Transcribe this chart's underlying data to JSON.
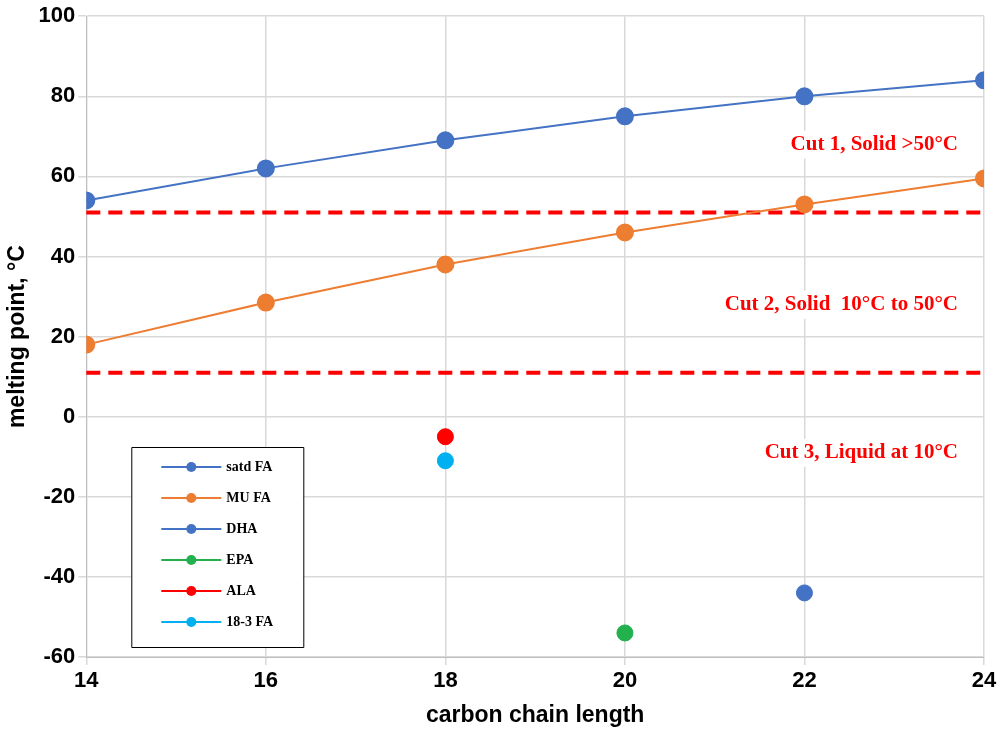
{
  "chart_data": {
    "type": "line",
    "xlabel": "carbon chain length",
    "ylabel": "melting point, °C",
    "xlim": [
      14,
      24
    ],
    "xticks": [
      14,
      16,
      18,
      20,
      22,
      24
    ],
    "ylim": [
      -60,
      100
    ],
    "yticks": [
      -60,
      -40,
      -20,
      0,
      20,
      40,
      60,
      80,
      100
    ],
    "grid": true,
    "legend": "bottom left",
    "marker": "circle",
    "series": [
      {
        "name": "satd FA",
        "color": "#4472c4",
        "x": [
          14,
          16,
          18,
          20,
          22,
          24
        ],
        "values": [
          54,
          62,
          69,
          75,
          80,
          84
        ]
      },
      {
        "name": "MU FA",
        "color": "#ed7d31",
        "x": [
          14,
          16,
          18,
          20,
          22,
          24
        ],
        "values": [
          18,
          28.5,
          38,
          46,
          53,
          59.5
        ]
      },
      {
        "name": "DHA",
        "type": "scatter",
        "color": "#4472c4",
        "x": [
          22
        ],
        "values": [
          -44
        ]
      },
      {
        "name": "EPA",
        "type": "scatter",
        "color": "#22b14c",
        "x": [
          20
        ],
        "values": [
          -54
        ]
      },
      {
        "name": "ALA",
        "type": "scatter",
        "color": "#ff0000",
        "x": [
          18
        ],
        "values": [
          -5
        ]
      },
      {
        "name": "18-3 FA",
        "type": "scatter",
        "color": "#00b0f0",
        "x": [
          18
        ],
        "values": [
          -11
        ]
      }
    ],
    "ref_lines": [
      {
        "axis": "y",
        "value": 51,
        "color": "#ff0000",
        "line_style": "dashed"
      },
      {
        "axis": "y",
        "value": 11,
        "color": "#ff0000",
        "line_style": "dashed"
      }
    ],
    "annotations": [
      "Cut 1, Solid >50°C",
      "Cut 2, Solid  10°C to 50°C",
      "Cut 3, Liquid at 10°C"
    ]
  }
}
